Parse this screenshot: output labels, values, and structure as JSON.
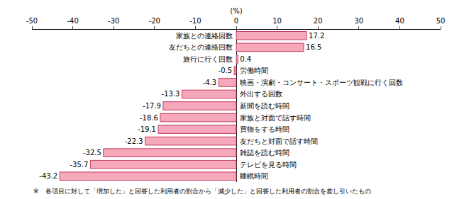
{
  "chart_data": {
    "type": "bar",
    "orientation": "horizontal",
    "x_label": "(%)",
    "note": "※　各項目に対して「増加した」と回答した利用者の割合から「減少した」と回答した利用者の割合を差し引いたもの",
    "categories": [
      "家族との連絡回数",
      "友だちとの連絡回数",
      "旅行に行く回数",
      "労働時間",
      "映画・演劇・コンサート・スポーツ観戦に行く回数",
      "外出する回数",
      "新聞を読む時間",
      "家族と対面で話す時間",
      "買物をする時間",
      "友だちと対面で話す時間",
      "雑誌を読む時間",
      "テレビを見る時間",
      "睡眠時間"
    ],
    "values": [
      17.2,
      16.5,
      0.4,
      -0.5,
      -4.3,
      -13.3,
      -17.9,
      -18.6,
      -19.1,
      -22.3,
      -32.5,
      -35.7,
      -43.2
    ],
    "color": "#f7a9bc",
    "xlim": [
      -50,
      50
    ],
    "xticks": [
      -50,
      -40,
      -30,
      -20,
      -10,
      0,
      10,
      20,
      30,
      40,
      50
    ],
    "grid": false,
    "data_labels": true,
    "tick_labels": "x"
  }
}
